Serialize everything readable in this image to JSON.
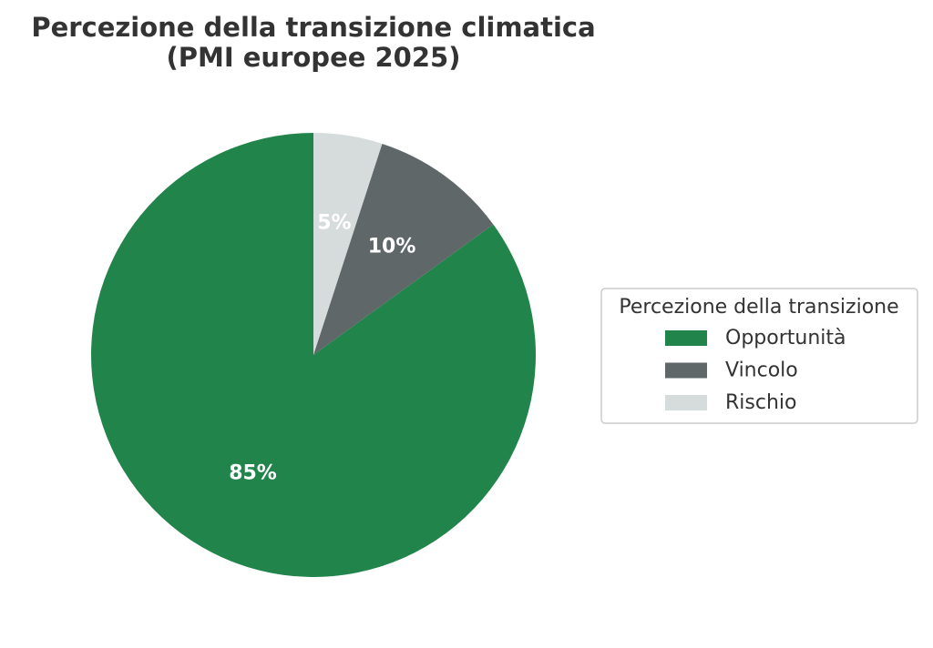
{
  "chart_data": {
    "type": "pie",
    "title": "Percezione della transizione climatica",
    "subtitle": "(PMI europee 2025)",
    "legend_title": "Percezione della transizione",
    "legend_position": "right",
    "slices": [
      {
        "name": "Opportunità",
        "value": 85,
        "label": "85%",
        "color": "#21844b"
      },
      {
        "name": "Vincolo",
        "value": 10,
        "label": "10%",
        "color": "#5f6769"
      },
      {
        "name": "Rischio",
        "value": 5,
        "label": "5%",
        "color": "#d6dbdb"
      }
    ]
  }
}
